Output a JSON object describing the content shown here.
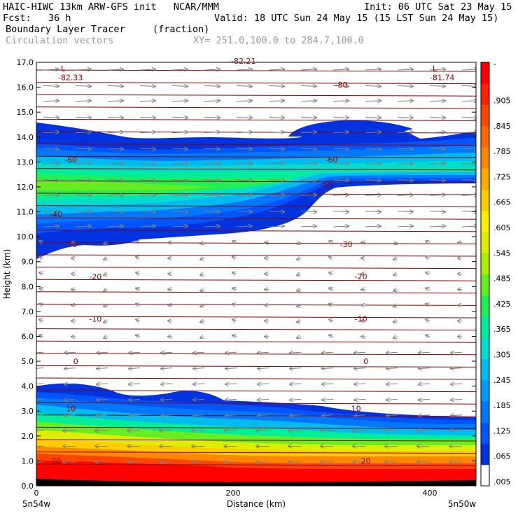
{
  "header": {
    "line1_left": "HAIC-HIWC 13km ARW-GFS init   NCAR/MMM",
    "line1_right": "Init: 06 UTC Sat 23 May 15",
    "line2_left": "Fcst:   36 h",
    "line2_right": "Valid: 18 UTC Sun 24 May 15 (15 LST Sun 24 May 15)",
    "line3_left": "Boundary Layer Tracer",
    "line3_mid": "(fraction)",
    "line4_left": "Circulation vectors",
    "line4_mid": "XY= 251.0,100.0 to 284.7,100.0"
  },
  "chart_data": {
    "type": "heatmap",
    "title": "Boundary Layer Tracer",
    "units": "(fraction)",
    "overlay": "Circulation vectors",
    "xlabel": "Distance (km)",
    "ylabel": "Height (km)",
    "xlim": [
      0,
      447
    ],
    "ylim": [
      0,
      17
    ],
    "x_ticks": [
      0,
      200,
      400
    ],
    "y_ticks": [
      0.0,
      1.0,
      2.0,
      3.0,
      4.0,
      5.0,
      6.0,
      7.0,
      8.0,
      9.0,
      10.0,
      11.0,
      12.0,
      13.0,
      14.0,
      15.0,
      16.0,
      17.0
    ],
    "x_end_labels": {
      "left": "5n54w",
      "right": "5n50w"
    },
    "colorbar": {
      "labels": [
        ".005",
        ".065",
        ".125",
        ".185",
        ".245",
        ".305",
        ".365",
        ".425",
        ".485",
        ".545",
        ".605",
        ".665",
        ".725",
        ".785",
        ".845",
        ".905"
      ],
      "top_label": "-",
      "colors": [
        "#ffffff",
        "#0033e0",
        "#0055ff",
        "#0077ff",
        "#0099ff",
        "#00bbee",
        "#00ddcc",
        "#00ee99",
        "#22ee55",
        "#66ee22",
        "#aaee00",
        "#ddee00",
        "#ffee00",
        "#ffcc00",
        "#ffaa00",
        "#ff8800",
        "#ff6600",
        "#ff4400",
        "#ff2200",
        "#ff0000"
      ]
    },
    "contour_labels": [
      {
        "text": "-80",
        "x": 310,
        "y": 16.1
      },
      {
        "text": "-60",
        "x": 35,
        "y": 13.1
      },
      {
        "text": "-60",
        "x": 300,
        "y": 13.1
      },
      {
        "text": "-50",
        "x": 295,
        "y": 12.1
      },
      {
        "text": "-40",
        "x": 20,
        "y": 10.9
      },
      {
        "text": "-30",
        "x": 35,
        "y": 9.7
      },
      {
        "text": "-30",
        "x": 315,
        "y": 9.7
      },
      {
        "text": "-20",
        "x": 60,
        "y": 8.4
      },
      {
        "text": "-20",
        "x": 330,
        "y": 8.4
      },
      {
        "text": "-10",
        "x": 60,
        "y": 6.7
      },
      {
        "text": "-10",
        "x": 330,
        "y": 6.7
      },
      {
        "text": "0",
        "x": 40,
        "y": 5.0
      },
      {
        "text": "0",
        "x": 335,
        "y": 5.0
      },
      {
        "text": "10",
        "x": 35,
        "y": 3.1
      },
      {
        "text": "10",
        "x": 325,
        "y": 3.1
      },
      {
        "text": "20",
        "x": 20,
        "y": 1.0
      },
      {
        "text": "20",
        "x": 335,
        "y": 1.0
      }
    ],
    "extrema": [
      {
        "kind": "L",
        "value": "-82.33",
        "x": 22,
        "y": 16.7
      },
      {
        "kind": "L",
        "value": "-81.74",
        "x": 400,
        "y": 16.7
      },
      {
        "kind": "",
        "value": "-82.21",
        "x": 205,
        "y": 17.0
      }
    ]
  }
}
